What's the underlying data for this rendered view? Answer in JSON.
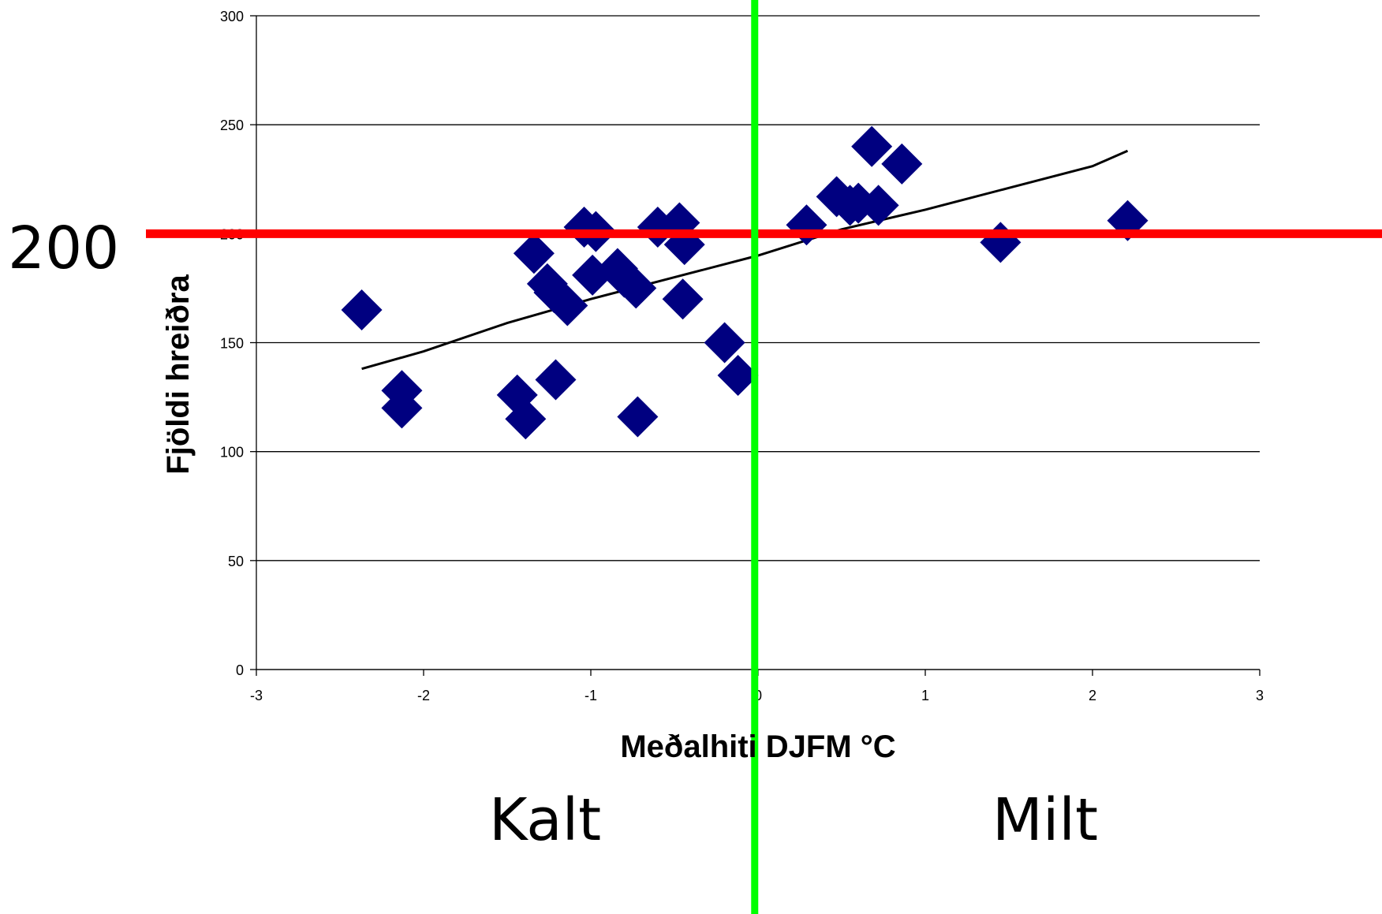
{
  "chart_data": {
    "type": "scatter",
    "title": "",
    "xlabel": "Meðalhiti DJFM °C",
    "ylabel": "Fjöldi hreiðra",
    "xlim": [
      -3,
      3
    ],
    "ylim": [
      0,
      300
    ],
    "x_ticks": [
      -3,
      -2,
      -1,
      0,
      1,
      2,
      3
    ],
    "y_ticks": [
      0,
      50,
      100,
      150,
      200,
      250,
      300
    ],
    "x_tick_labels": [
      "-3",
      "-2",
      "-1",
      "0",
      "1",
      "2",
      "3"
    ],
    "y_tick_labels": [
      "0",
      "50",
      "100",
      "150",
      "200",
      "250",
      "300"
    ],
    "grid": "horizontal",
    "marker": "diamond",
    "marker_color": "#000080",
    "points": [
      {
        "x": -2.37,
        "y": 165
      },
      {
        "x": -2.13,
        "y": 128
      },
      {
        "x": -2.13,
        "y": 120
      },
      {
        "x": -1.44,
        "y": 126
      },
      {
        "x": -1.39,
        "y": 115
      },
      {
        "x": -1.34,
        "y": 191
      },
      {
        "x": -1.26,
        "y": 177
      },
      {
        "x": -1.22,
        "y": 173
      },
      {
        "x": -1.21,
        "y": 133
      },
      {
        "x": -1.14,
        "y": 167
      },
      {
        "x": -1.04,
        "y": 203
      },
      {
        "x": -0.99,
        "y": 181
      },
      {
        "x": -0.97,
        "y": 201
      },
      {
        "x": -0.84,
        "y": 184
      },
      {
        "x": -0.8,
        "y": 180
      },
      {
        "x": -0.73,
        "y": 175
      },
      {
        "x": -0.72,
        "y": 116
      },
      {
        "x": -0.6,
        "y": 203
      },
      {
        "x": -0.47,
        "y": 205
      },
      {
        "x": -0.44,
        "y": 195
      },
      {
        "x": -0.45,
        "y": 170
      },
      {
        "x": -0.2,
        "y": 150
      },
      {
        "x": -0.12,
        "y": 135
      },
      {
        "x": 0.29,
        "y": 204
      },
      {
        "x": 0.47,
        "y": 217
      },
      {
        "x": 0.55,
        "y": 213
      },
      {
        "x": 0.6,
        "y": 214
      },
      {
        "x": 0.72,
        "y": 213
      },
      {
        "x": 0.68,
        "y": 240
      },
      {
        "x": 0.86,
        "y": 232
      },
      {
        "x": 1.45,
        "y": 196
      },
      {
        "x": 2.21,
        "y": 206
      }
    ],
    "trendline": {
      "color": "#000000",
      "x": [
        -2.37,
        -2.0,
        -1.5,
        -1.0,
        -0.5,
        0.0,
        0.5,
        1.0,
        1.5,
        2.0,
        2.21
      ],
      "y": [
        138,
        146,
        159,
        170,
        180,
        190,
        202,
        211,
        221,
        231,
        238
      ]
    },
    "annotations": {
      "reference_y": 200,
      "reference_y_label": "200",
      "reference_y_color": "#ff0000",
      "reference_x": -0.02,
      "reference_x_color": "#00ff00",
      "left_region_label": "Kalt",
      "right_region_label": "Milt"
    }
  }
}
